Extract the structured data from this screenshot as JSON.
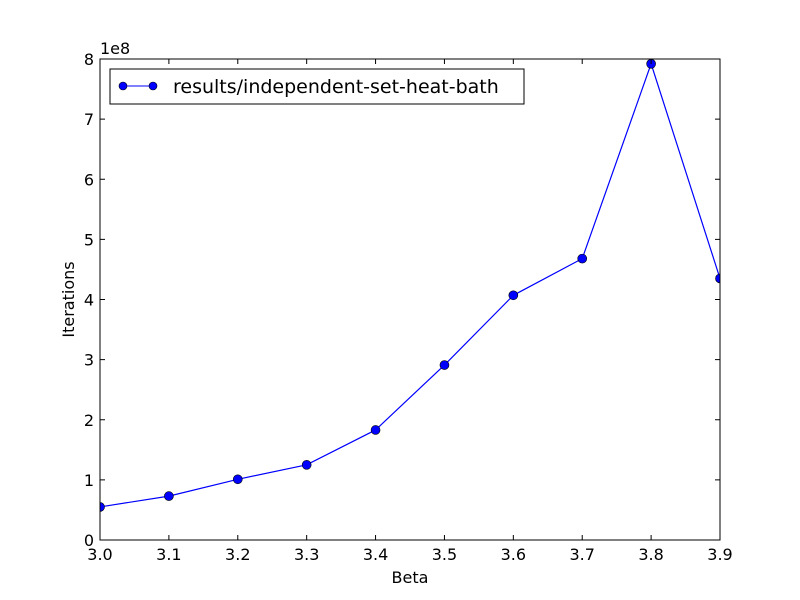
{
  "chart_data": {
    "type": "line",
    "title": "",
    "xlabel": "Beta",
    "ylabel": "Iterations",
    "y_offset_label": "1e8",
    "y_scale": 100000000,
    "xlim": [
      3.0,
      3.9
    ],
    "ylim": [
      0,
      800000000
    ],
    "x_ticks": [
      3.0,
      3.1,
      3.2,
      3.3,
      3.4,
      3.5,
      3.6,
      3.7,
      3.8,
      3.9
    ],
    "x_tick_labels": [
      "3.0",
      "3.1",
      "3.2",
      "3.3",
      "3.4",
      "3.5",
      "3.6",
      "3.7",
      "3.8",
      "3.9"
    ],
    "y_ticks": [
      0,
      100000000,
      200000000,
      300000000,
      400000000,
      500000000,
      600000000,
      700000000,
      800000000
    ],
    "y_tick_labels": [
      "0",
      "1",
      "2",
      "3",
      "4",
      "5",
      "6",
      "7",
      "8"
    ],
    "grid": false,
    "legend_position": "top-left",
    "series": [
      {
        "name": "results/independent-set-heat-bath",
        "color": "#0000ff",
        "marker": "circle",
        "x": [
          3.0,
          3.1,
          3.2,
          3.3,
          3.4,
          3.5,
          3.6,
          3.7,
          3.8,
          3.9
        ],
        "y": [
          55000000,
          73000000,
          101000000,
          125000000,
          183000000,
          291000000,
          407000000,
          468000000,
          792000000,
          435000000
        ]
      }
    ]
  }
}
